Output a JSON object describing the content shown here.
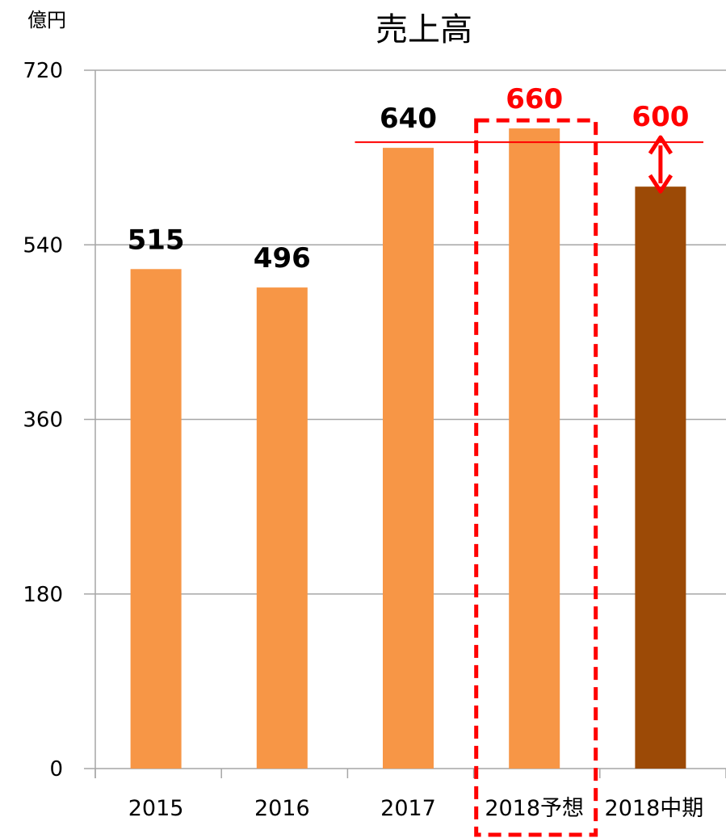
{
  "chart_data": {
    "type": "bar",
    "title": "売上高",
    "unit_label": "億円",
    "categories": [
      "2015",
      "2016",
      "2017",
      "2018予想",
      "2018中期"
    ],
    "values": [
      515,
      496,
      640,
      660,
      600
    ],
    "value_labels": [
      "515",
      "496",
      "640",
      "660",
      "600"
    ],
    "ylim": [
      0,
      720
    ],
    "yticks": [
      "0",
      "180",
      "360",
      "540",
      "720"
    ],
    "grid": true,
    "colors": {
      "bar": "#F79646",
      "bar_highlight": "#9C4A06",
      "label_default": "#000000",
      "label_emphasis": "#FF0000",
      "annotation": "#FF0000",
      "grid": "#A6A6A6"
    },
    "bar_color_keys": [
      "bar",
      "bar",
      "bar",
      "bar",
      "bar_highlight"
    ],
    "label_color_keys": [
      "label_default",
      "label_default",
      "label_default",
      "label_emphasis",
      "label_emphasis"
    ],
    "annotations": {
      "reference_line_value": 640,
      "highlighted_category": "2018予想",
      "gap_arrow_category": "2018中期"
    }
  }
}
